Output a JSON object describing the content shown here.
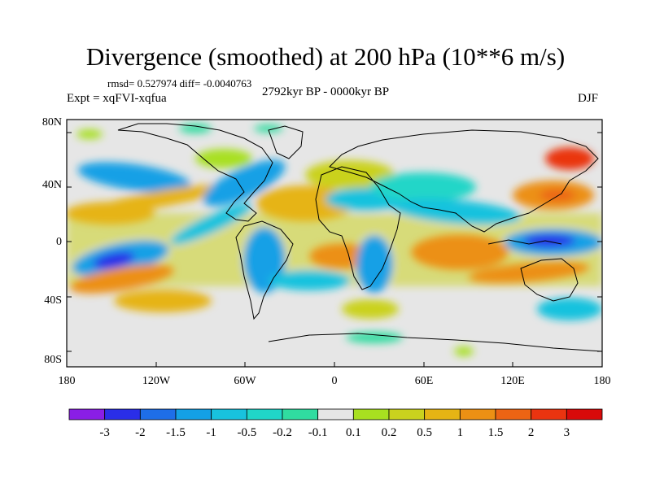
{
  "title": "Divergence (smoothed) at 200 hPa (10**6 m/s)",
  "stats_line": "rmsd= 0.527974 diff= -0.0040763",
  "experiment": "Expt = xqFVI-xqfua",
  "period": "2792kyr BP - 0000kyr BP",
  "season": "DJF",
  "lat_ticks": [
    "80N",
    "40N",
    "0",
    "40S",
    "80S"
  ],
  "lon_ticks": [
    "180",
    "120W",
    "60W",
    "0",
    "60E",
    "120E",
    "180"
  ],
  "colorbar": {
    "labels": [
      "-3",
      "-2",
      "-1.5",
      "-1",
      "-0.5",
      "-0.2",
      "-0.1",
      "0.1",
      "0.2",
      "0.5",
      "1",
      "1.5",
      "2",
      "3"
    ],
    "colors": [
      "#8a1ee6",
      "#2a2ee8",
      "#1e6ee8",
      "#14a0e6",
      "#18c2de",
      "#20d6c8",
      "#30dca0",
      "#e6e6e6",
      "#a8e020",
      "#cad21e",
      "#e6b414",
      "#ec9014",
      "#ec6414",
      "#ea3410",
      "#d80a0a"
    ]
  },
  "chart_data": {
    "type": "heatmap",
    "title": "Divergence (smoothed) at 200 hPa (10**6 m/s)",
    "variable": "Divergence (smoothed) at 200 hPa",
    "units": "10**6 m/s",
    "lon_range": [
      -180,
      180
    ],
    "lat_range": [
      -90,
      90
    ],
    "levels": [
      -3,
      -2,
      -1.5,
      -1,
      -0.5,
      -0.2,
      -0.1,
      0.1,
      0.2,
      0.5,
      1,
      1.5,
      2,
      3
    ],
    "season": "DJF"
  }
}
